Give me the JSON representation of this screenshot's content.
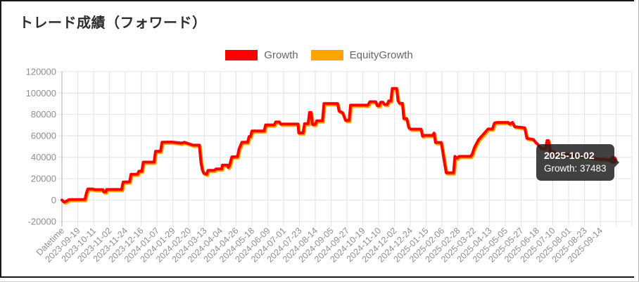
{
  "page_title": "トレード成績（フォワード）",
  "tooltip": {
    "date": "2025-10-02",
    "value_label": "Growth: 37483"
  },
  "axis_colors": {
    "grid": "#e6e6e6",
    "axis_line": "#bdbdbd",
    "tick_text": "#8e8e8e"
  },
  "chart_data": {
    "type": "line",
    "title": "トレード成績（フォワード）",
    "xlabel": "Datetime",
    "ylabel": "",
    "ylim": [
      -20000,
      120000
    ],
    "grid": true,
    "legend_position": "top",
    "y_ticks": [
      120000,
      100000,
      80000,
      60000,
      40000,
      20000,
      0,
      -20000
    ],
    "x_tick_labels": [
      "Datetime",
      "2023-09-19",
      "2023-10-11",
      "2023-11-02",
      "2023-11-24",
      "2023-12-16",
      "2024-01-07",
      "2024-01-29",
      "2024-02-20",
      "2024-03-13",
      "2024-04-04",
      "2024-04-26",
      "2024-05-18",
      "2024-06-09",
      "2024-07-01",
      "2024-07-23",
      "2024-08-14",
      "2024-09-05",
      "2024-09-27",
      "2024-10-19",
      "2024-11-10",
      "2024-12-02",
      "2024-12-24",
      "2025-01-15",
      "2025-02-06",
      "2025-02-28",
      "2025-03-22",
      "2025-04-13",
      "2025-05-05",
      "2025-05-27",
      "2025-06-18",
      "2025-07-10",
      "2025-08-01",
      "2025-08-23",
      "2025-09-14"
    ],
    "tooltip": {
      "date": "2025-10-02",
      "text": "Growth: 37483"
    },
    "series": [
      {
        "name": "EquityGrowth",
        "color": "#ffa500",
        "overlaps": "Growth",
        "points": []
      },
      {
        "name": "Growth",
        "color": "#ff0000",
        "last_point": {
          "date": "2025-10-02",
          "value": 37483
        },
        "points": [
          [
            "2023-08-28",
            0
          ],
          [
            "2023-08-31",
            -1800
          ],
          [
            "2023-09-04",
            -800
          ],
          [
            "2023-09-07",
            500
          ],
          [
            "2023-09-29",
            600
          ],
          [
            "2023-10-01",
            6500
          ],
          [
            "2023-10-03",
            10400
          ],
          [
            "2023-10-10",
            10400
          ],
          [
            "2023-10-12",
            9800
          ],
          [
            "2023-10-24",
            9800
          ],
          [
            "2023-10-25",
            7700
          ],
          [
            "2023-10-28",
            7700
          ],
          [
            "2023-10-29",
            9900
          ],
          [
            "2023-11-19",
            9900
          ],
          [
            "2023-11-21",
            16800
          ],
          [
            "2023-11-30",
            17100
          ],
          [
            "2023-12-02",
            24200
          ],
          [
            "2023-12-11",
            24200
          ],
          [
            "2023-12-13",
            27000
          ],
          [
            "2023-12-17",
            27000
          ],
          [
            "2023-12-19",
            35500
          ],
          [
            "2024-01-03",
            35500
          ],
          [
            "2024-01-05",
            45600
          ],
          [
            "2024-01-12",
            45600
          ],
          [
            "2024-01-14",
            54000
          ],
          [
            "2024-01-28",
            54200
          ],
          [
            "2024-02-10",
            53200
          ],
          [
            "2024-02-14",
            54000
          ],
          [
            "2024-02-26",
            51300
          ],
          [
            "2024-03-06",
            51300
          ],
          [
            "2024-03-08",
            35900
          ],
          [
            "2024-03-10",
            28400
          ],
          [
            "2024-03-12",
            25000
          ],
          [
            "2024-03-16",
            24200
          ],
          [
            "2024-03-18",
            27800
          ],
          [
            "2024-03-27",
            27800
          ],
          [
            "2024-03-29",
            29100
          ],
          [
            "2024-04-06",
            29100
          ],
          [
            "2024-04-07",
            32700
          ],
          [
            "2024-04-14",
            32700
          ],
          [
            "2024-04-15",
            30500
          ],
          [
            "2024-04-17",
            32700
          ],
          [
            "2024-04-20",
            40300
          ],
          [
            "2024-04-28",
            40500
          ],
          [
            "2024-04-30",
            47700
          ],
          [
            "2024-05-04",
            54000
          ],
          [
            "2024-05-12",
            54000
          ],
          [
            "2024-05-14",
            59400
          ],
          [
            "2024-05-16",
            59400
          ],
          [
            "2024-05-18",
            64500
          ],
          [
            "2024-06-04",
            64500
          ],
          [
            "2024-06-06",
            70200
          ],
          [
            "2024-06-18",
            70200
          ],
          [
            "2024-06-20",
            73000
          ],
          [
            "2024-06-25",
            73000
          ],
          [
            "2024-06-27",
            71000
          ],
          [
            "2024-07-21",
            71000
          ],
          [
            "2024-07-22",
            62700
          ],
          [
            "2024-07-28",
            62700
          ],
          [
            "2024-07-30",
            71300
          ],
          [
            "2024-08-04",
            71300
          ],
          [
            "2024-08-06",
            82000
          ],
          [
            "2024-08-08",
            82000
          ],
          [
            "2024-08-10",
            70700
          ],
          [
            "2024-08-14",
            70700
          ],
          [
            "2024-08-16",
            74000
          ],
          [
            "2024-08-24",
            74000
          ],
          [
            "2024-08-26",
            90200
          ],
          [
            "2024-09-14",
            90200
          ],
          [
            "2024-09-16",
            83100
          ],
          [
            "2024-09-21",
            81600
          ],
          [
            "2024-09-25",
            74400
          ],
          [
            "2024-09-30",
            74400
          ],
          [
            "2024-10-02",
            88700
          ],
          [
            "2024-10-26",
            88700
          ],
          [
            "2024-10-29",
            91900
          ],
          [
            "2024-11-06",
            91900
          ],
          [
            "2024-11-08",
            88200
          ],
          [
            "2024-11-11",
            88200
          ],
          [
            "2024-11-13",
            91500
          ],
          [
            "2024-11-16",
            91500
          ],
          [
            "2024-11-18",
            89300
          ],
          [
            "2024-11-22",
            89300
          ],
          [
            "2024-11-24",
            92600
          ],
          [
            "2024-11-27",
            92600
          ],
          [
            "2024-11-29",
            104300
          ],
          [
            "2024-12-05",
            104300
          ],
          [
            "2024-12-07",
            92600
          ],
          [
            "2024-12-09",
            90400
          ],
          [
            "2024-12-13",
            90400
          ],
          [
            "2024-12-15",
            76100
          ],
          [
            "2024-12-19",
            76100
          ],
          [
            "2024-12-22",
            67400
          ],
          [
            "2024-12-25",
            66300
          ],
          [
            "2025-01-08",
            66300
          ],
          [
            "2025-01-10",
            59700
          ],
          [
            "2025-01-13",
            60400
          ],
          [
            "2025-01-24",
            60400
          ],
          [
            "2025-01-26",
            62600
          ],
          [
            "2025-01-28",
            53800
          ],
          [
            "2025-02-05",
            53800
          ],
          [
            "2025-02-07",
            45500
          ],
          [
            "2025-02-10",
            33000
          ],
          [
            "2025-02-12",
            25500
          ],
          [
            "2025-02-22",
            25500
          ],
          [
            "2025-02-24",
            40800
          ],
          [
            "2025-02-27",
            39100
          ],
          [
            "2025-03-02",
            40800
          ],
          [
            "2025-03-18",
            40800
          ],
          [
            "2025-03-20",
            42800
          ],
          [
            "2025-03-23",
            48900
          ],
          [
            "2025-03-29",
            56600
          ],
          [
            "2025-04-04",
            61000
          ],
          [
            "2025-04-11",
            66400
          ],
          [
            "2025-04-17",
            66400
          ],
          [
            "2025-04-20",
            71900
          ],
          [
            "2025-04-24",
            72500
          ],
          [
            "2025-05-09",
            72500
          ],
          [
            "2025-05-11",
            71000
          ],
          [
            "2025-05-15",
            72500
          ],
          [
            "2025-05-18",
            68600
          ],
          [
            "2025-06-01",
            67500
          ],
          [
            "2025-06-04",
            57700
          ],
          [
            "2025-06-13",
            56600
          ],
          [
            "2025-06-16",
            54000
          ],
          [
            "2025-06-19",
            52200
          ],
          [
            "2025-06-23",
            48900
          ],
          [
            "2025-06-30",
            47800
          ],
          [
            "2025-07-02",
            55500
          ],
          [
            "2025-07-04",
            55500
          ],
          [
            "2025-07-06",
            46000
          ],
          [
            "2025-07-16",
            43400
          ],
          [
            "2025-08-15",
            41700
          ],
          [
            "2025-09-10",
            38500
          ],
          [
            "2025-09-25",
            37800
          ],
          [
            "2025-10-02",
            37483
          ]
        ]
      }
    ]
  }
}
